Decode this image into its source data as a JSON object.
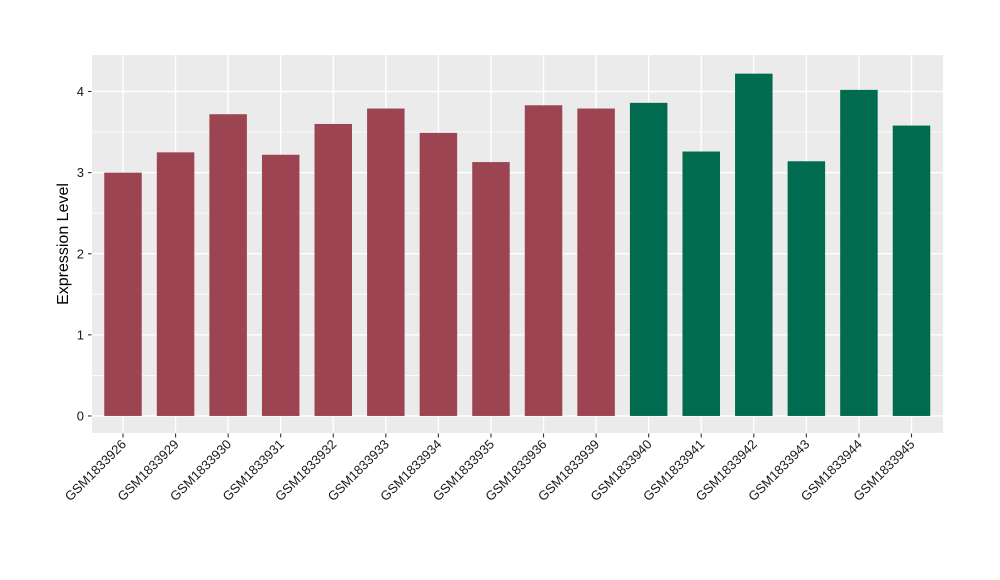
{
  "chart_data": {
    "type": "bar",
    "title": "",
    "xlabel": "",
    "ylabel": "Expression Level",
    "categories": [
      "GSM1833926",
      "GSM1833929",
      "GSM1833930",
      "GSM1833931",
      "GSM1833932",
      "GSM1833933",
      "GSM1833934",
      "GSM1833935",
      "GSM1833936",
      "GSM1833939",
      "GSM1833940",
      "GSM1833941",
      "GSM1833942",
      "GSM1833943",
      "GSM1833944",
      "GSM1833945"
    ],
    "values": [
      3.0,
      3.25,
      3.72,
      3.22,
      3.6,
      3.79,
      3.49,
      3.13,
      3.83,
      3.79,
      3.86,
      3.26,
      4.22,
      3.14,
      4.02,
      3.58
    ],
    "bar_colors": [
      "#9D4452",
      "#9D4452",
      "#9D4452",
      "#9D4452",
      "#9D4452",
      "#9D4452",
      "#9D4452",
      "#9D4452",
      "#9D4452",
      "#9D4452",
      "#006B4E",
      "#006B4E",
      "#006B4E",
      "#006B4E",
      "#006B4E",
      "#006B4E"
    ],
    "group_colors": {
      "maroon": "#9D4452",
      "green": "#006B4E"
    },
    "y_ticks": [
      0,
      1,
      2,
      3,
      4
    ],
    "ylim": [
      -0.21,
      4.45
    ],
    "grid": "on",
    "legend": "none",
    "panel_bg": "#EBEBEB",
    "grid_major_color": "#FFFFFF",
    "grid_minor_color": "#FFFFFF",
    "tick_mark_color": "#333333",
    "tick_label_color": "#1A1A1A",
    "axis_title_color": "#000000"
  }
}
